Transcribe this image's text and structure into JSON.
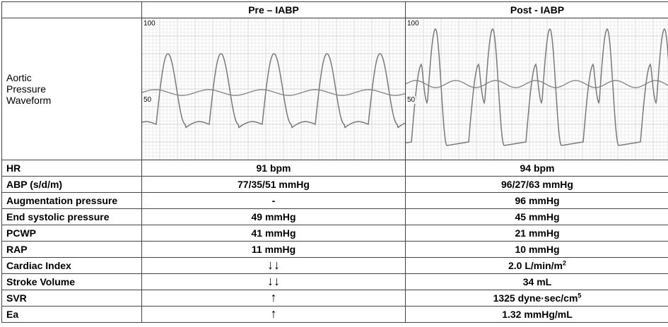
{
  "headers": {
    "pre": "Pre – IABP",
    "post": "Post - IABP"
  },
  "waveform": {
    "label_lines": [
      "Aortic",
      "Pressure",
      "Waveform"
    ],
    "tick_top": "100",
    "tick_mid": "50"
  },
  "rows": [
    {
      "label": "HR",
      "pre": "91  bpm",
      "post": "94  bpm"
    },
    {
      "label": "ABP (s/d/m)",
      "pre": "77/35/51  mmHg",
      "post": "96/27/63  mmHg"
    },
    {
      "label": "Augmentation pressure",
      "pre": "-",
      "post": "96  mmHg"
    },
    {
      "label": "End systolic pressure",
      "pre": "49 mmHg",
      "post": "45  mmHg"
    },
    {
      "label": "PCWP",
      "pre": "41 mmHg",
      "post": "21  mmHg"
    },
    {
      "label": "RAP",
      "pre": "11 mmHg",
      "post": "10 mmHg"
    },
    {
      "label": "Cardiac Index",
      "pre": "↓↓",
      "post_main": "2.0 L/min/m",
      "post_sup": "2"
    },
    {
      "label": "Stroke Volume",
      "pre": "↓↓",
      "post": "34 mL"
    },
    {
      "label": "SVR",
      "pre": "↑",
      "post_main": "1325 dyne·sec/cm",
      "post_sup": "5"
    },
    {
      "label": "Ea",
      "pre": "↑",
      "post": "1.32 mmHg/mL"
    }
  ]
}
